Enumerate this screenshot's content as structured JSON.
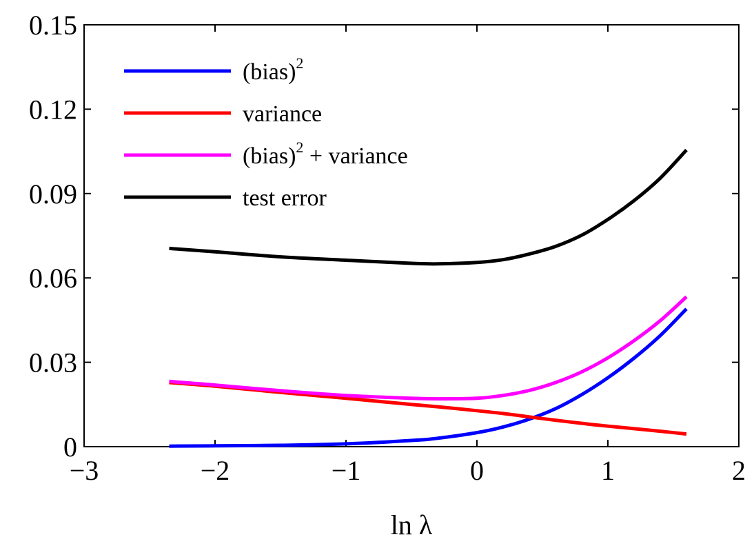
{
  "chart_data": {
    "type": "line",
    "xlabel": "ln λ",
    "ylabel": "",
    "xlim": [
      -3,
      2
    ],
    "ylim": [
      0,
      0.15
    ],
    "xticks": [
      "−3",
      "−2",
      "−1",
      "0",
      "1",
      "2"
    ],
    "yticks": [
      "0",
      "0.03",
      "0.06",
      "0.09",
      "0.12",
      "0.15"
    ],
    "grid": false,
    "legend_position": "top-left",
    "x": [
      -2.35,
      -2.0,
      -1.5,
      -1.0,
      -0.5,
      -0.3,
      0.0,
      0.2,
      0.4,
      0.6,
      0.8,
      1.0,
      1.2,
      1.4,
      1.6
    ],
    "series": [
      {
        "name": "(bias)2",
        "legend_base": "(bias)",
        "legend_sup": "2",
        "legend_rest": "",
        "color": "#0000ff",
        "values": [
          0.0002,
          0.0003,
          0.0005,
          0.001,
          0.0022,
          0.003,
          0.005,
          0.007,
          0.0098,
          0.0135,
          0.0185,
          0.0245,
          0.0315,
          0.0395,
          0.049
        ]
      },
      {
        "name": "variance",
        "legend_base": "variance",
        "legend_sup": "",
        "legend_rest": "",
        "color": "#ff0000",
        "values": [
          0.0228,
          0.0215,
          0.0193,
          0.0172,
          0.015,
          0.0142,
          0.0128,
          0.0118,
          0.0106,
          0.0094,
          0.0083,
          0.0073,
          0.0064,
          0.0055,
          0.0045
        ]
      },
      {
        "name": "(bias)2 + variance",
        "legend_base": "(bias)",
        "legend_sup": "2",
        "legend_rest": " + variance",
        "color": "#ff00ff",
        "values": [
          0.0232,
          0.0219,
          0.0199,
          0.0182,
          0.0172,
          0.017,
          0.0172,
          0.0182,
          0.02,
          0.0228,
          0.0266,
          0.0316,
          0.0377,
          0.0448,
          0.0533
        ]
      },
      {
        "name": "test error",
        "legend_base": "test error",
        "legend_sup": "",
        "legend_rest": "",
        "color": "#000000",
        "values": [
          0.0705,
          0.0693,
          0.0675,
          0.0663,
          0.0652,
          0.065,
          0.0655,
          0.0665,
          0.0685,
          0.0712,
          0.0752,
          0.0808,
          0.0875,
          0.0955,
          0.1055
        ]
      }
    ]
  }
}
